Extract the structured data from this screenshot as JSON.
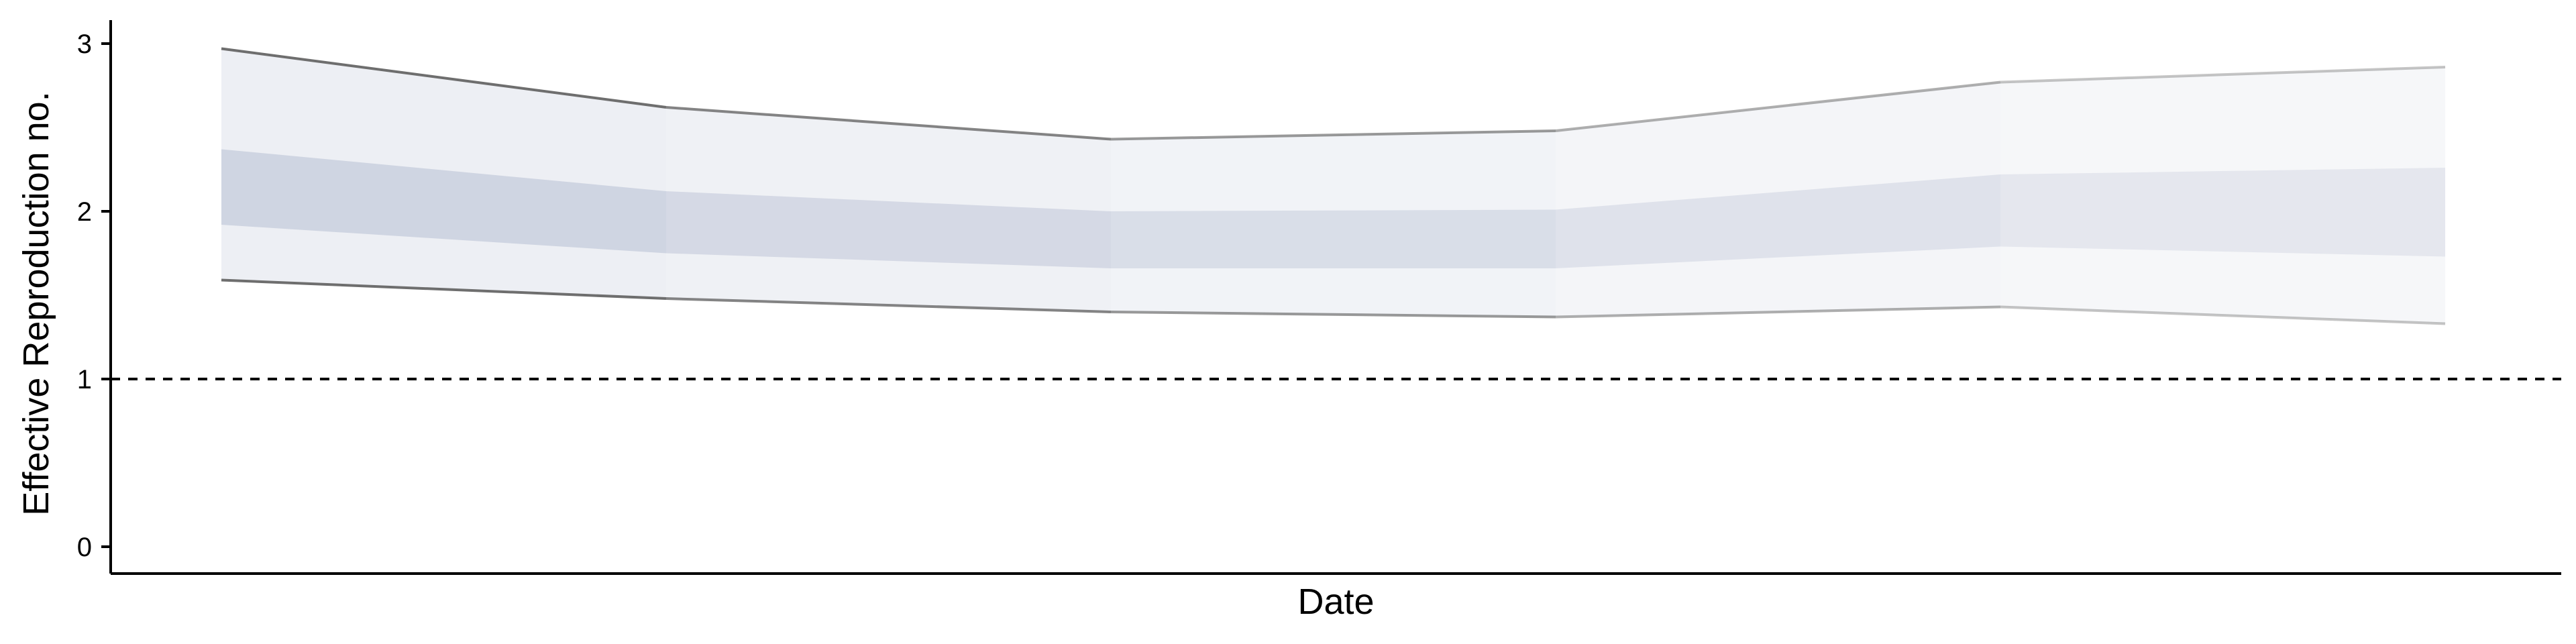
{
  "chart_data": {
    "type": "area",
    "title": "",
    "xlabel": "Date",
    "ylabel": "Effective Reproduction no.",
    "ylim": [
      0,
      3.1
    ],
    "yticks": [
      0,
      1,
      2,
      3
    ],
    "x": [
      1,
      2,
      3,
      4,
      5,
      6
    ],
    "reference_line": {
      "y": 1,
      "style": "dashed"
    },
    "series": [
      {
        "outer_upper": [
          2.97,
          2.62,
          2.43,
          2.48,
          2.77,
          2.86
        ],
        "outer_lower": [
          1.59,
          1.48,
          1.4,
          1.37,
          1.43,
          1.33
        ],
        "inner_upper": [
          2.37,
          2.12,
          2.0,
          2.01,
          2.22,
          2.26
        ],
        "inner_lower": [
          1.92,
          1.75,
          1.66,
          1.66,
          1.79,
          1.73
        ]
      }
    ],
    "grid": false,
    "legend": "none"
  },
  "colors": {
    "outer_band": "#d0d4e2",
    "inner_band": "#a8b0c8",
    "bound_line": "#6e6e6e",
    "reference_line": "#000000",
    "axis": "#000000"
  }
}
